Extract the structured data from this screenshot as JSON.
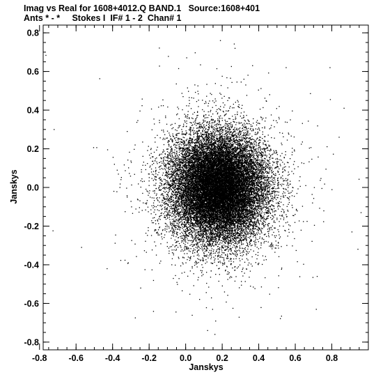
{
  "header": {
    "line1": "Imag vs Real for 1608+4012.Q BAND.1   Source:1608+401",
    "line2": "Ants * - *     Stokes I  IF# 1 - 2  Chan# 1"
  },
  "chart_data": {
    "type": "scatter",
    "title": "Imag vs Real for 1608+4012.Q BAND.1   Source:1608+401",
    "subtitle": "Ants * - *     Stokes I  IF# 1 - 2  Chan# 1",
    "xlabel": "Janskys",
    "ylabel": "Janskys",
    "xlim": [
      -0.78,
      1.0
    ],
    "ylim": [
      -0.84,
      0.84
    ],
    "x_ticks": [
      "-0.8",
      "-0.6",
      "-0.4",
      "-0.2",
      "0.0",
      "0.2",
      "0.4",
      "0.6",
      "0.8"
    ],
    "y_ticks": [
      "0.8",
      "0.6",
      "0.4",
      "0.2",
      "0.0",
      "-0.2",
      "-0.4",
      "-0.6",
      "-0.8"
    ],
    "grid": false,
    "point_color": "#000000",
    "distribution": {
      "kind": "gaussian-cloud",
      "n_points": 22000,
      "center": [
        0.18,
        0.0
      ],
      "std": [
        0.13,
        0.14
      ],
      "tail_fraction": 0.05,
      "tail_std": [
        0.25,
        0.26
      ]
    },
    "outliers": [
      [
        -0.72,
        0.3
      ],
      [
        -0.57,
        -0.31
      ],
      [
        -0.43,
        -0.42
      ],
      [
        0.79,
        0.62
      ],
      [
        0.84,
        0.26
      ],
      [
        0.96,
        -0.13
      ],
      [
        0.27,
        0.72
      ],
      [
        0.16,
        -0.76
      ],
      [
        0.12,
        -0.74
      ],
      [
        0.55,
        0.62
      ],
      [
        -0.39,
        0.12
      ],
      [
        0.91,
        -0.23
      ],
      [
        0.72,
        -0.46
      ],
      [
        0.19,
        0.76
      ],
      [
        -0.32,
        0.29
      ]
    ]
  }
}
